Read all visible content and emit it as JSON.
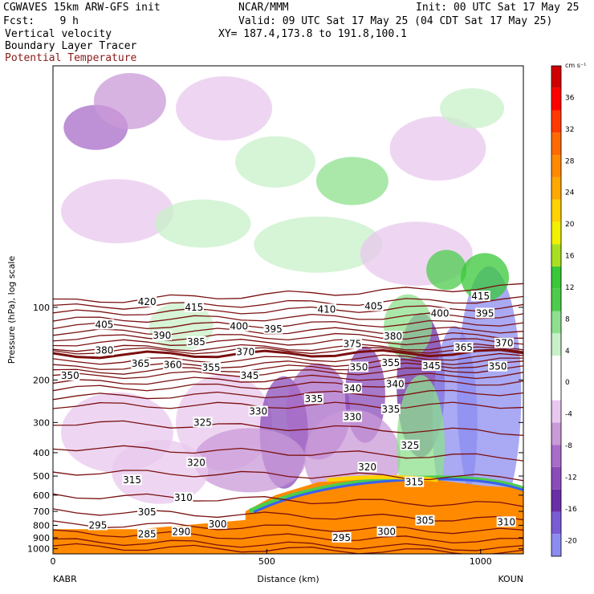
{
  "header": {
    "model": "CGWAVES 15km ARW-GFS init",
    "fcst": "Fcst:    9 h",
    "org": "NCAR/MMM",
    "init": "Init: 00 UTC Sat 17 May 25",
    "valid": "Valid: 09 UTC Sat 17 May 25 (04 CDT Sat 17 May 25)",
    "xy": "XY= 187.4,173.8 to 191.8,100.1",
    "field1": "Vertical velocity",
    "field2": "Boundary Layer Tracer",
    "field3": "Potential Temperature"
  },
  "colors": {
    "theta": "#7a0f0f",
    "frame": "#000000"
  },
  "chart_data": {
    "type": "heatmap",
    "title": "Vertical velocity / Boundary Layer Tracer / Potential Temperature cross section",
    "xlabel": "Distance (km)",
    "ylabel": "Pressure (hPa), log scale",
    "xlim": [
      0,
      1100
    ],
    "ylim": [
      1050,
      10
    ],
    "y_scale": "log",
    "x_ticks": [
      "0",
      "500",
      "1000"
    ],
    "x_tick_values": [
      0,
      500,
      1000
    ],
    "y_ticks": [
      "100",
      "200",
      "300",
      "400",
      "500",
      "600",
      "700",
      "800",
      "900",
      "1000"
    ],
    "y_tick_values": [
      100,
      200,
      300,
      400,
      500,
      600,
      700,
      800,
      900,
      1000
    ],
    "left_endpoint": "KABR",
    "right_endpoint": "KOUN",
    "colorbar": {
      "units": "cm s⁻¹",
      "labels": [
        "36",
        "32",
        "28",
        "24",
        "20",
        "16",
        "12",
        "8",
        "4",
        "0",
        "-4",
        "-8",
        "-12",
        "-16",
        "-20"
      ],
      "label_values": [
        36,
        32,
        28,
        24,
        20,
        16,
        12,
        8,
        4,
        0,
        -4,
        -8,
        -12,
        -16,
        -20
      ],
      "range": [
        -22,
        40
      ],
      "colors": [
        "#8c8cf0",
        "#7a5bd6",
        "#6a2fa6",
        "#8a4cb8",
        "#a86cc8",
        "#c99ad8",
        "#e8c8ee",
        "#ffffff",
        "#ffffff",
        "#c8f0c8",
        "#8ee08e",
        "#4ccc4c",
        "#38c838",
        "#a8e020",
        "#f0f000",
        "#ffd200",
        "#ffa800",
        "#ff8a00",
        "#ff6a00",
        "#ff3a00",
        "#ff0000",
        "#d00000"
      ]
    },
    "theta_contours": [
      {
        "level": 420,
        "p_left": 95,
        "p_right": 82
      },
      {
        "level": 415,
        "p_left": 100,
        "p_right": 93
      },
      {
        "level": 410,
        "p_left": 106,
        "p_right": 100
      },
      {
        "level": 405,
        "p_left": 113,
        "p_right": 108
      },
      {
        "level": 400,
        "p_left": 120,
        "p_right": 116
      },
      {
        "level": 395,
        "p_left": 127,
        "p_right": 124
      },
      {
        "level": 390,
        "p_left": 134,
        "p_right": 131
      },
      {
        "level": 385,
        "p_left": 141,
        "p_right": 138
      },
      {
        "level": 380,
        "p_left": 148,
        "p_right": 146
      },
      {
        "level": 375,
        "p_left": 152,
        "p_right": 150
      },
      {
        "level": 370,
        "p_left": 158,
        "p_right": 154
      },
      {
        "level": 365,
        "p_left": 168,
        "p_right": 160
      },
      {
        "level": 360,
        "p_left": 178,
        "p_right": 166
      },
      {
        "level": 355,
        "p_left": 186,
        "p_right": 172
      },
      {
        "level": 350,
        "p_left": 194,
        "p_right": 180
      },
      {
        "level": 345,
        "p_left": 206,
        "p_right": 190
      },
      {
        "level": 340,
        "p_left": 218,
        "p_right": 204
      },
      {
        "level": 335,
        "p_left": 235,
        "p_right": 225
      },
      {
        "level": 330,
        "p_left": 255,
        "p_right": 255
      },
      {
        "level": 325,
        "p_left": 300,
        "p_right": 330
      },
      {
        "level": 320,
        "p_left": 380,
        "p_right": 420
      },
      {
        "level": 315,
        "p_left": 480,
        "p_right": 510
      },
      {
        "level": 310,
        "p_left": 600,
        "p_right": 660
      },
      {
        "level": 305,
        "p_left": 700,
        "p_right": 760
      },
      {
        "level": 300,
        "p_left": 790,
        "p_right": 850
      },
      {
        "level": 295,
        "p_left": 860,
        "p_right": 930
      },
      {
        "level": 290,
        "p_left": 930,
        "p_right": 1000
      },
      {
        "level": 285,
        "p_left": 980,
        "p_right": 1040
      }
    ],
    "theta_labels": [
      {
        "text": "420",
        "x": 220,
        "p": 95
      },
      {
        "text": "415",
        "x": 330,
        "p": 100
      },
      {
        "text": "410",
        "x": 640,
        "p": 102
      },
      {
        "text": "405",
        "x": 120,
        "p": 118
      },
      {
        "text": "405",
        "x": 750,
        "p": 99
      },
      {
        "text": "415",
        "x": 1000,
        "p": 90
      },
      {
        "text": "400",
        "x": 435,
        "p": 120
      },
      {
        "text": "400",
        "x": 905,
        "p": 106
      },
      {
        "text": "395",
        "x": 515,
        "p": 123
      },
      {
        "text": "395",
        "x": 1010,
        "p": 106
      },
      {
        "text": "390",
        "x": 255,
        "p": 131
      },
      {
        "text": "385",
        "x": 335,
        "p": 139
      },
      {
        "text": "380",
        "x": 120,
        "p": 151
      },
      {
        "text": "380",
        "x": 795,
        "p": 132
      },
      {
        "text": "375",
        "x": 700,
        "p": 142
      },
      {
        "text": "370",
        "x": 450,
        "p": 153
      },
      {
        "text": "370",
        "x": 1055,
        "p": 141
      },
      {
        "text": "365",
        "x": 205,
        "p": 171
      },
      {
        "text": "365",
        "x": 960,
        "p": 147
      },
      {
        "text": "360",
        "x": 280,
        "p": 173
      },
      {
        "text": "355",
        "x": 370,
        "p": 178
      },
      {
        "text": "355",
        "x": 790,
        "p": 170
      },
      {
        "text": "350",
        "x": 40,
        "p": 192
      },
      {
        "text": "350",
        "x": 715,
        "p": 177
      },
      {
        "text": "350",
        "x": 1040,
        "p": 176
      },
      {
        "text": "345",
        "x": 460,
        "p": 192
      },
      {
        "text": "345",
        "x": 885,
        "p": 175
      },
      {
        "text": "340",
        "x": 700,
        "p": 217
      },
      {
        "text": "340",
        "x": 800,
        "p": 208
      },
      {
        "text": "335",
        "x": 610,
        "p": 240
      },
      {
        "text": "335",
        "x": 790,
        "p": 265
      },
      {
        "text": "330",
        "x": 480,
        "p": 270
      },
      {
        "text": "330",
        "x": 700,
        "p": 285
      },
      {
        "text": "325",
        "x": 350,
        "p": 300
      },
      {
        "text": "325",
        "x": 835,
        "p": 373
      },
      {
        "text": "320",
        "x": 335,
        "p": 440
      },
      {
        "text": "320",
        "x": 735,
        "p": 460
      },
      {
        "text": "315",
        "x": 185,
        "p": 520
      },
      {
        "text": "315",
        "x": 845,
        "p": 530
      },
      {
        "text": "310",
        "x": 305,
        "p": 615
      },
      {
        "text": "310",
        "x": 1060,
        "p": 775
      },
      {
        "text": "305",
        "x": 220,
        "p": 705
      },
      {
        "text": "305",
        "x": 870,
        "p": 765
      },
      {
        "text": "300",
        "x": 385,
        "p": 790
      },
      {
        "text": "300",
        "x": 780,
        "p": 850
      },
      {
        "text": "295",
        "x": 105,
        "p": 800
      },
      {
        "text": "295",
        "x": 675,
        "p": 900
      },
      {
        "text": "290",
        "x": 300,
        "p": 850
      },
      {
        "text": "285",
        "x": 220,
        "p": 870
      }
    ]
  }
}
